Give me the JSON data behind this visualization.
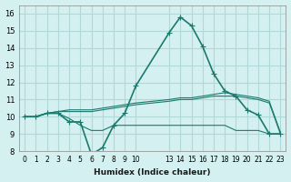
{
  "xlabel": "Humidex (Indice chaleur)",
  "ylabel": "",
  "bg_color": "#d4f0f0",
  "grid_color": "#b0d8d8",
  "line_color": "#1a7a6e",
  "xlim": [
    -0.5,
    23.5
  ],
  "ylim": [
    8,
    16.5
  ],
  "yticks": [
    8,
    9,
    10,
    11,
    12,
    13,
    14,
    15,
    16
  ],
  "xticks": [
    0,
    1,
    2,
    3,
    4,
    5,
    6,
    7,
    8,
    9,
    10,
    13,
    14,
    15,
    16,
    17,
    18,
    19,
    20,
    21,
    22,
    23
  ],
  "series": [
    {
      "x": [
        0,
        1,
        2,
        3,
        4,
        5,
        6,
        7,
        8,
        9,
        10,
        13,
        14,
        15,
        16,
        17,
        18,
        19,
        20,
        21,
        22,
        23
      ],
      "y": [
        10.0,
        10.0,
        10.2,
        10.2,
        9.7,
        9.7,
        7.8,
        8.2,
        9.5,
        10.2,
        11.8,
        14.9,
        15.8,
        15.3,
        14.1,
        12.5,
        11.5,
        11.2,
        10.4,
        10.1,
        9.0,
        9.0
      ],
      "marker": "+"
    },
    {
      "x": [
        0,
        1,
        2,
        3,
        4,
        5,
        6,
        7,
        8,
        9,
        10,
        13,
        14,
        15,
        16,
        17,
        18,
        19,
        20,
        21,
        22,
        23
      ],
      "y": [
        10.0,
        10.0,
        10.2,
        10.2,
        9.9,
        9.5,
        9.2,
        9.2,
        9.5,
        9.5,
        9.5,
        9.5,
        9.5,
        9.5,
        9.5,
        9.5,
        9.5,
        9.2,
        9.2,
        9.2,
        9.0,
        9.0
      ],
      "marker": null
    },
    {
      "x": [
        0,
        1,
        2,
        3,
        4,
        5,
        6,
        7,
        8,
        9,
        10,
        13,
        14,
        15,
        16,
        17,
        18,
        19,
        20,
        21,
        22,
        23
      ],
      "y": [
        10.0,
        10.0,
        10.2,
        10.3,
        10.3,
        10.3,
        10.3,
        10.4,
        10.5,
        10.6,
        10.7,
        10.9,
        11.0,
        11.0,
        11.1,
        11.2,
        11.2,
        11.2,
        11.1,
        11.0,
        10.8,
        9.0
      ],
      "marker": null
    },
    {
      "x": [
        0,
        1,
        2,
        3,
        4,
        5,
        6,
        7,
        8,
        9,
        10,
        13,
        14,
        15,
        16,
        17,
        18,
        19,
        20,
        21,
        22,
        23
      ],
      "y": [
        10.0,
        10.0,
        10.2,
        10.3,
        10.4,
        10.4,
        10.4,
        10.5,
        10.6,
        10.7,
        10.8,
        11.0,
        11.1,
        11.1,
        11.2,
        11.3,
        11.4,
        11.3,
        11.2,
        11.1,
        10.9,
        9.1
      ],
      "marker": null
    }
  ]
}
